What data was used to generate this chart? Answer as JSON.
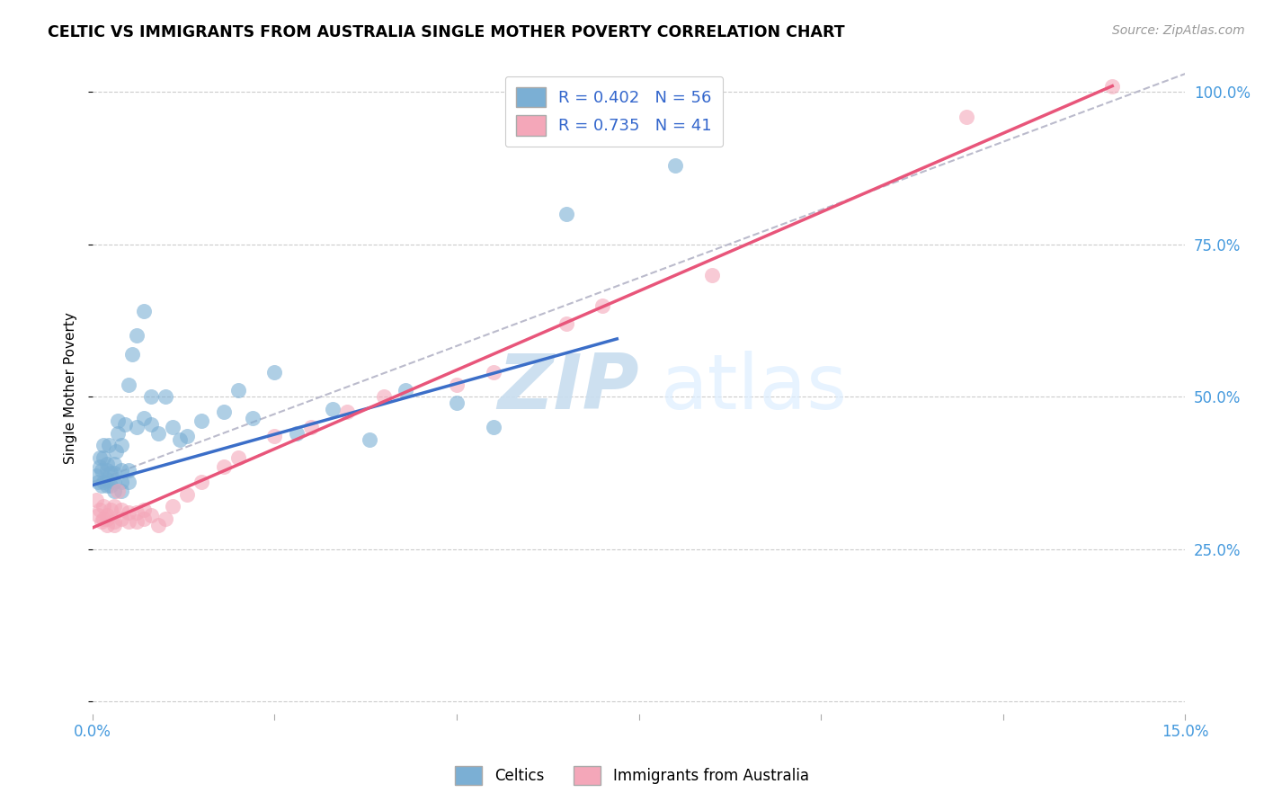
{
  "title": "CELTIC VS IMMIGRANTS FROM AUSTRALIA SINGLE MOTHER POVERTY CORRELATION CHART",
  "source": "Source: ZipAtlas.com",
  "ylabel": "Single Mother Poverty",
  "xmin": 0.0,
  "xmax": 0.15,
  "ymin": 0.0,
  "ymax": 1.05,
  "celtics_R": 0.402,
  "celtics_N": 56,
  "aus_R": 0.735,
  "aus_N": 41,
  "celtics_color": "#7BAFD4",
  "aus_color": "#F4A7B9",
  "regression_celtics_color": "#3B6EC8",
  "regression_aus_color": "#E8557A",
  "regression_dashed_color": "#BBBBCC",
  "legend_label_celtics": "Celtics",
  "legend_label_aus": "Immigrants from Australia",
  "blue_line_x0": 0.0,
  "blue_line_y0": 0.355,
  "blue_line_x1": 0.072,
  "blue_line_y1": 0.595,
  "pink_line_x0": 0.0,
  "pink_line_y0": 0.285,
  "pink_line_x1": 0.14,
  "pink_line_y1": 1.01,
  "dash_line_x0": 0.0,
  "dash_line_y0": 0.36,
  "dash_line_x1": 0.15,
  "dash_line_y1": 1.03,
  "celtics_x": [
    0.0005,
    0.0008,
    0.001,
    0.001,
    0.0012,
    0.0012,
    0.0015,
    0.0015,
    0.0015,
    0.002,
    0.002,
    0.002,
    0.002,
    0.0022,
    0.0025,
    0.0025,
    0.003,
    0.003,
    0.003,
    0.003,
    0.0032,
    0.0035,
    0.0035,
    0.004,
    0.004,
    0.004,
    0.004,
    0.0045,
    0.005,
    0.005,
    0.005,
    0.0055,
    0.006,
    0.006,
    0.007,
    0.007,
    0.008,
    0.008,
    0.009,
    0.01,
    0.011,
    0.012,
    0.013,
    0.015,
    0.018,
    0.02,
    0.022,
    0.025,
    0.028,
    0.033,
    0.038,
    0.043,
    0.05,
    0.055,
    0.065,
    0.08
  ],
  "celtics_y": [
    0.37,
    0.36,
    0.385,
    0.4,
    0.355,
    0.38,
    0.36,
    0.4,
    0.42,
    0.355,
    0.365,
    0.38,
    0.39,
    0.42,
    0.355,
    0.375,
    0.345,
    0.36,
    0.375,
    0.39,
    0.41,
    0.44,
    0.46,
    0.345,
    0.36,
    0.38,
    0.42,
    0.455,
    0.36,
    0.38,
    0.52,
    0.57,
    0.45,
    0.6,
    0.465,
    0.64,
    0.5,
    0.455,
    0.44,
    0.5,
    0.45,
    0.43,
    0.435,
    0.46,
    0.475,
    0.51,
    0.465,
    0.54,
    0.44,
    0.48,
    0.43,
    0.51,
    0.49,
    0.45,
    0.8,
    0.88
  ],
  "aus_x": [
    0.0005,
    0.0008,
    0.001,
    0.0012,
    0.0015,
    0.0015,
    0.002,
    0.002,
    0.002,
    0.0025,
    0.003,
    0.003,
    0.003,
    0.0035,
    0.004,
    0.004,
    0.005,
    0.005,
    0.006,
    0.006,
    0.007,
    0.007,
    0.008,
    0.009,
    0.01,
    0.011,
    0.013,
    0.015,
    0.018,
    0.02,
    0.025,
    0.03,
    0.035,
    0.04,
    0.05,
    0.055,
    0.065,
    0.07,
    0.085,
    0.12,
    0.14
  ],
  "aus_y": [
    0.33,
    0.305,
    0.315,
    0.295,
    0.3,
    0.32,
    0.29,
    0.3,
    0.305,
    0.315,
    0.29,
    0.295,
    0.32,
    0.345,
    0.3,
    0.315,
    0.295,
    0.31,
    0.295,
    0.31,
    0.3,
    0.315,
    0.305,
    0.29,
    0.3,
    0.32,
    0.34,
    0.36,
    0.385,
    0.4,
    0.435,
    0.45,
    0.475,
    0.5,
    0.52,
    0.54,
    0.62,
    0.65,
    0.7,
    0.96,
    1.01
  ],
  "background_color": "#FFFFFF"
}
